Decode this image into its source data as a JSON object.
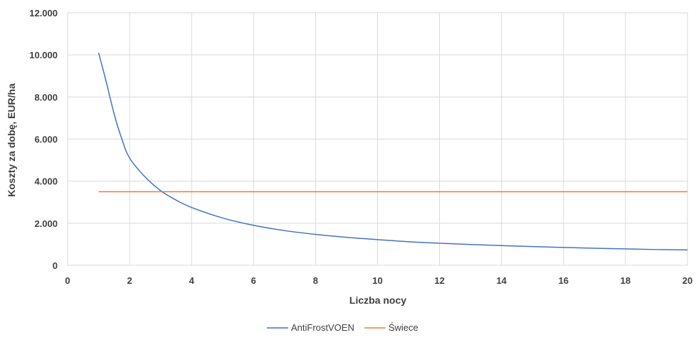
{
  "chart_data": {
    "type": "line",
    "title": "",
    "xlabel": "Liczba nocy",
    "ylabel": "Koszty za dobę, EUR/ha",
    "xlim": [
      0,
      20
    ],
    "ylim": [
      0,
      12000
    ],
    "x_ticks": [
      0,
      2,
      4,
      6,
      8,
      10,
      12,
      14,
      16,
      18,
      20
    ],
    "x_tick_labels": [
      "0",
      "2",
      "4",
      "6",
      "8",
      "10",
      "12",
      "14",
      "16",
      "18",
      "20"
    ],
    "y_ticks": [
      0,
      2000,
      4000,
      6000,
      8000,
      10000,
      12000
    ],
    "y_tick_labels": [
      "0",
      "2.000",
      "4.000",
      "6.000",
      "8.000",
      "10.000",
      "12.000"
    ],
    "grid": true,
    "legend_position": "bottom",
    "series": [
      {
        "name": "AntiFrostVOEN",
        "color": "#4472C4",
        "x": [
          1,
          1.25,
          1.5,
          1.75,
          2,
          2.5,
          3,
          3.5,
          4,
          5,
          6,
          7,
          8,
          9,
          10,
          11,
          12,
          13,
          14,
          15,
          16,
          17,
          18,
          19,
          20
        ],
        "values": [
          10100,
          8700,
          7200,
          6000,
          5100,
          4200,
          3550,
          3100,
          2750,
          2250,
          1900,
          1650,
          1470,
          1330,
          1220,
          1120,
          1050,
          990,
          940,
          890,
          850,
          810,
          780,
          750,
          730
        ]
      },
      {
        "name": "Świece",
        "color": "#ED7D31",
        "x": [
          1,
          20
        ],
        "values": [
          3500,
          3500
        ]
      }
    ]
  }
}
